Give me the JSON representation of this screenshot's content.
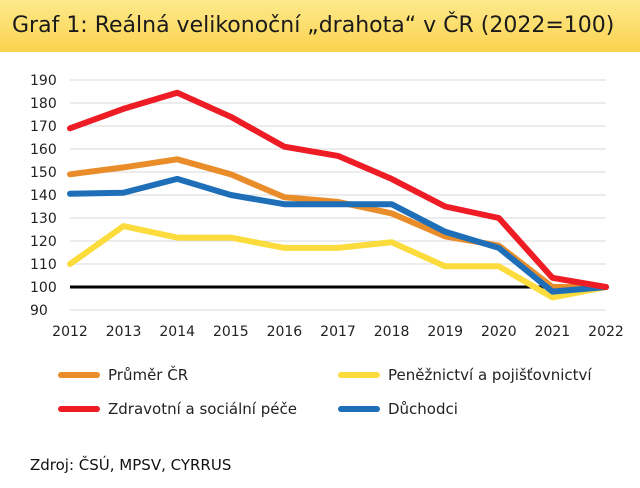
{
  "title": "Graf 1: Reálná velikonoční „drahota“ v ČR (2022=100)",
  "source": "Zdroj: ČSÚ, MPSV, CYRRUS",
  "chart_data": {
    "type": "line",
    "title": "Graf 1: Reálná velikonoční „drahota“ v ČR (2022=100)",
    "xlabel": "",
    "ylabel": "",
    "x": [
      2012,
      2013,
      2014,
      2015,
      2016,
      2017,
      2018,
      2019,
      2020,
      2021,
      2022
    ],
    "ylim": [
      90,
      190
    ],
    "yticks": [
      90,
      100,
      110,
      120,
      130,
      140,
      150,
      160,
      170,
      180,
      190
    ],
    "grid": true,
    "reference_line": {
      "value": 100,
      "color": "#000000"
    },
    "series": [
      {
        "name": "Průměr ČR",
        "color": "#e98d2a",
        "values": [
          149,
          152,
          155.5,
          149,
          139,
          137,
          132,
          122,
          118,
          100,
          100
        ]
      },
      {
        "name": "Peněžnictví a pojišťovnictví",
        "color": "#fbdc3c",
        "values": [
          110,
          126.5,
          121.5,
          121.5,
          117,
          117,
          119.5,
          109,
          109,
          95.5,
          100
        ]
      },
      {
        "name": "Zdravotní a sociální péče",
        "color": "#ee1c24",
        "values": [
          169,
          177.5,
          184.5,
          174,
          161,
          157,
          147,
          135,
          130,
          104,
          100
        ]
      },
      {
        "name": "Důchodci",
        "color": "#1e6fb8",
        "values": [
          140.5,
          141,
          147,
          140,
          136,
          136,
          136,
          124,
          117,
          98,
          100
        ]
      }
    ],
    "legend_position": "bottom"
  }
}
